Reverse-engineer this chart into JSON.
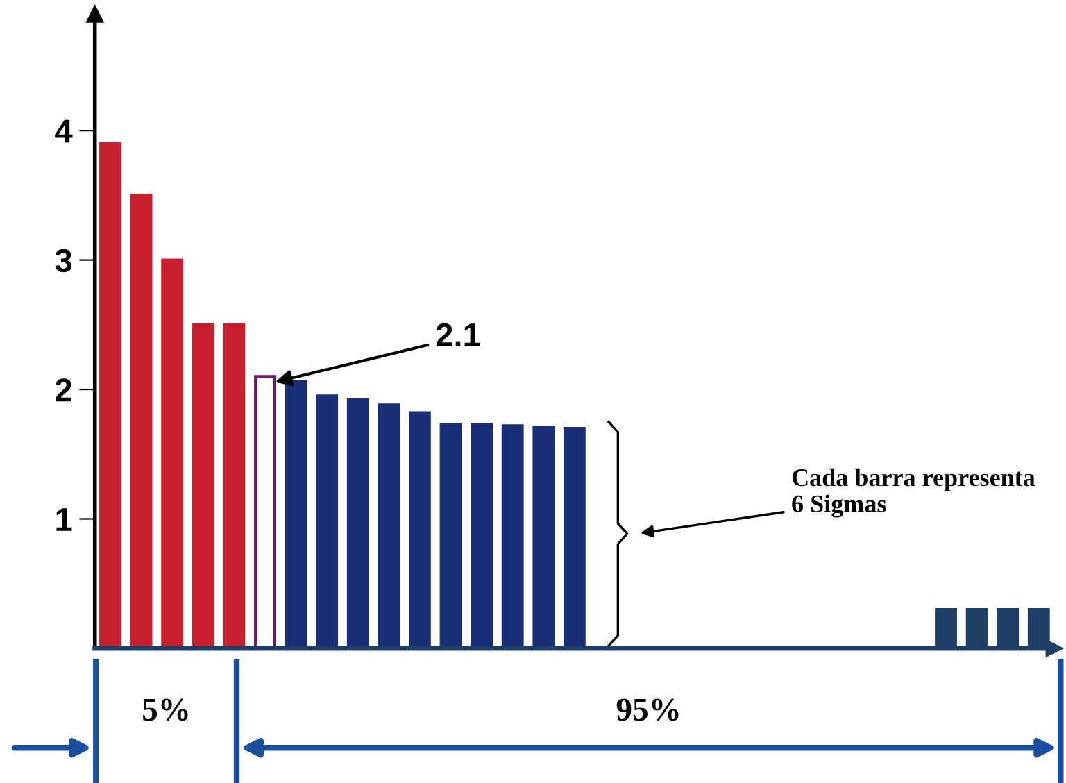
{
  "chart_data": {
    "type": "bar",
    "categories": [
      null,
      null,
      null,
      null,
      null,
      null,
      null,
      null,
      null,
      null,
      null,
      null,
      null,
      null,
      null,
      null,
      null,
      null,
      null,
      null,
      null,
      null,
      null,
      null,
      null,
      null,
      null,
      null,
      null,
      null,
      null
    ],
    "values": [
      3.9,
      3.5,
      3.0,
      2.5,
      2.5,
      2.1,
      2.06,
      1.95,
      1.92,
      1.88,
      1.82,
      1.73,
      1.73,
      1.72,
      1.71,
      1.7,
      null,
      null,
      null,
      null,
      null,
      null,
      null,
      null,
      null,
      null,
      null,
      0.3,
      0.3,
      0.3,
      0.3
    ],
    "colors": [
      "#c8202e",
      "#c8202e",
      "#c8202e",
      "#c8202e",
      "#c8202e",
      "#ffffff",
      "#1a2f78",
      "#1a2f78",
      "#1a2f78",
      "#1a2f78",
      "#1a2f78",
      "#1a2f78",
      "#1a2f78",
      "#1a2f78",
      "#1a2f78",
      "#1a2f78",
      "#1a2f78",
      "#1a2f78",
      "#1a2f78",
      "#1a2f78",
      "#1a2f78",
      "#1a2f78",
      "#1a2f78",
      "#1a2f78",
      "#1a2f78",
      "#1a2f78",
      "#1a2f78",
      "#1f3f66",
      "#1f3f66",
      "#1f3f66",
      "#1f3f66"
    ],
    "ylim": [
      0,
      4.9
    ],
    "yticks": [
      1,
      2,
      3,
      4
    ],
    "tick_labels": "y",
    "grid": false,
    "legend": false,
    "annotations": [
      "2.1",
      "Cada barra representa\n6 Sigmas",
      "5%",
      "95%"
    ]
  }
}
